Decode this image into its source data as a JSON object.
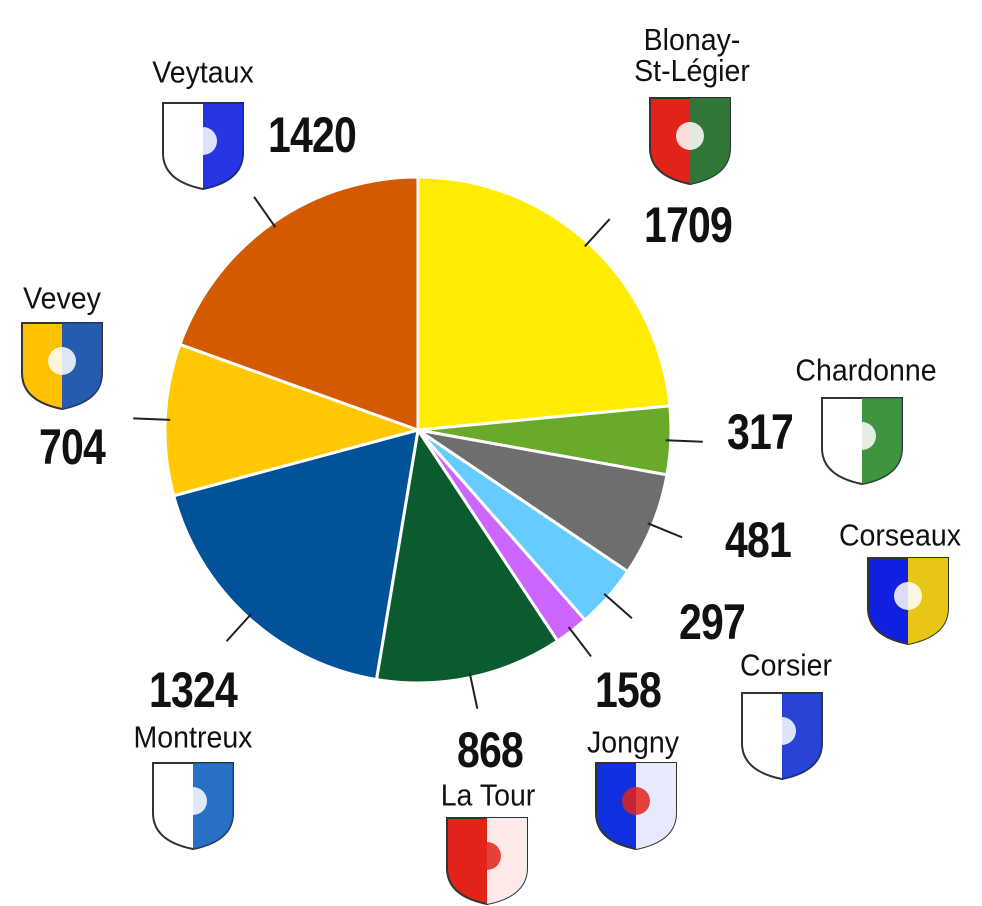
{
  "chart_data": {
    "type": "pie",
    "categories": [
      "Blonay-\nSt-Légier",
      "Chardonne",
      "Corseaux",
      "Corsier",
      "Jongny",
      "La Tour",
      "Montreux",
      "Vevey",
      "Veytaux"
    ],
    "values": [
      1709,
      317,
      481,
      297,
      158,
      868,
      1324,
      704,
      1420
    ],
    "colors": [
      "#ffec00",
      "#6aaa2a",
      "#6e6e6e",
      "#66ccff",
      "#cc66ff",
      "#0a5c2e",
      "#02529a",
      "#ffc800",
      "#d45a00"
    ]
  }
}
